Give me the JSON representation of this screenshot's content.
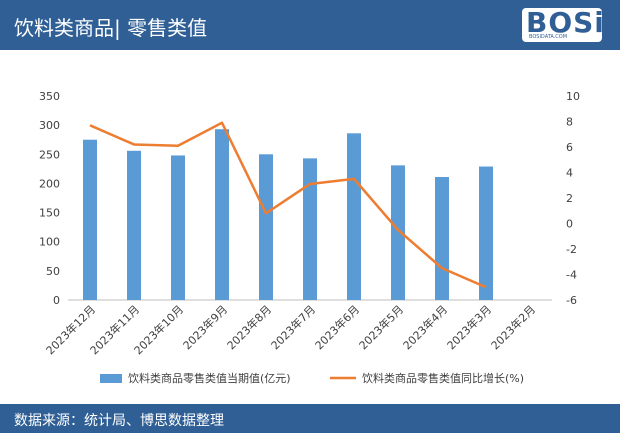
{
  "header": {
    "title": "饮料类商品| 零售类值"
  },
  "logo": {
    "text": "BOSi",
    "sub": "BOSIDATA.COM"
  },
  "footer": {
    "source": "数据来源：统计局、博思数据整理"
  },
  "colors": {
    "header_bg": "#2f5f95",
    "bar": "#5b9bd5",
    "line": "#ed7d31"
  },
  "chart_data": {
    "type": "bar",
    "categories": [
      "2023年12月",
      "2023年11月",
      "2023年10月",
      "2023年9月",
      "2023年8月",
      "2023年7月",
      "2023年6月",
      "2023年5月",
      "2023年4月",
      "2023年3月",
      "2023年2月"
    ],
    "series": [
      {
        "name": "饮料类商品零售类值当期值(亿元)",
        "type": "bar",
        "axis": "left",
        "values": [
          275,
          256,
          248,
          293,
          250,
          243,
          286,
          231,
          211,
          229,
          null
        ]
      },
      {
        "name": "饮料类商品零售类值同比增长(%)",
        "type": "line",
        "axis": "right",
        "values": [
          7.7,
          6.2,
          6.1,
          7.9,
          0.8,
          3.1,
          3.5,
          -0.5,
          -3.5,
          -5.0,
          null
        ]
      }
    ],
    "y_left": {
      "min": 0,
      "max": 350,
      "ticks": [
        0,
        50,
        100,
        150,
        200,
        250,
        300,
        350
      ]
    },
    "y_right": {
      "min": -6,
      "max": 10,
      "ticks": [
        -6,
        -4,
        -2,
        0,
        2,
        4,
        6,
        8,
        10
      ]
    },
    "legend": "bottom",
    "grid": false
  }
}
